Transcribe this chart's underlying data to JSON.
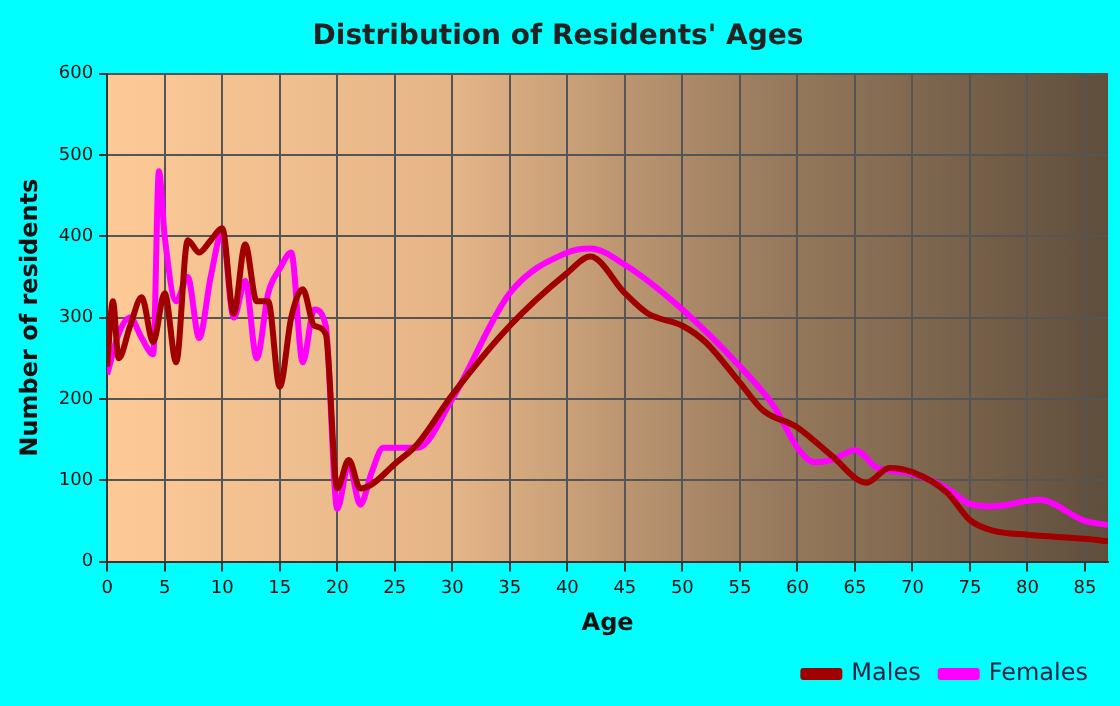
{
  "chart_data": {
    "type": "line",
    "title": "Distribution of Residents' Ages",
    "xlabel": "Age",
    "ylabel": "Number of residents",
    "xlim": [
      0,
      87
    ],
    "xticks": [
      0,
      5,
      10,
      15,
      20,
      25,
      30,
      35,
      40,
      45,
      50,
      55,
      60,
      65,
      70,
      75,
      80,
      85
    ],
    "ylim": [
      0,
      600
    ],
    "yticks": [
      0,
      100,
      200,
      300,
      400,
      500,
      600
    ],
    "grid": true,
    "legend": "bottom right",
    "marker": "none",
    "line_style": "solid",
    "series": [
      {
        "name": "Males",
        "color": "#a00000",
        "x": [
          0,
          0.5,
          1,
          2,
          3,
          4,
          5,
          6,
          7,
          8,
          9,
          10,
          11,
          12,
          13,
          14,
          15,
          16,
          17,
          18,
          19,
          20,
          21,
          22,
          23,
          25,
          27,
          30,
          35,
          40,
          42,
          45,
          47,
          50,
          52,
          55,
          57,
          60,
          63,
          66,
          68,
          70,
          73,
          75,
          77,
          80,
          85,
          87
        ],
        "values": [
          240,
          320,
          250,
          290,
          325,
          270,
          330,
          245,
          395,
          380,
          395,
          410,
          305,
          390,
          320,
          320,
          215,
          300,
          335,
          290,
          280,
          90,
          125,
          90,
          95,
          120,
          145,
          205,
          290,
          355,
          375,
          330,
          305,
          290,
          270,
          220,
          186,
          165,
          130,
          97,
          115,
          110,
          85,
          51,
          38,
          33,
          28,
          25
        ]
      },
      {
        "name": "Females",
        "color": "#ff00ff",
        "x": [
          0,
          1,
          2,
          3,
          4,
          4.5,
          5,
          6,
          7,
          8,
          9,
          10,
          11,
          12,
          13,
          14,
          15,
          16,
          17,
          18,
          19,
          20,
          21,
          22,
          23,
          24,
          25,
          27,
          30,
          35,
          40,
          42,
          45,
          50,
          55,
          58,
          60,
          61.5,
          63,
          65,
          67,
          70,
          73,
          75,
          77,
          81,
          85,
          87
        ],
        "values": [
          230,
          280,
          300,
          275,
          255,
          480,
          400,
          320,
          350,
          275,
          350,
          405,
          300,
          345,
          250,
          330,
          360,
          380,
          245,
          310,
          290,
          65,
          120,
          70,
          110,
          140,
          140,
          140,
          200,
          330,
          380,
          385,
          365,
          310,
          240,
          190,
          140,
          122,
          125,
          137,
          115,
          108,
          90,
          71,
          68,
          76,
          50,
          45
        ]
      }
    ]
  }
}
